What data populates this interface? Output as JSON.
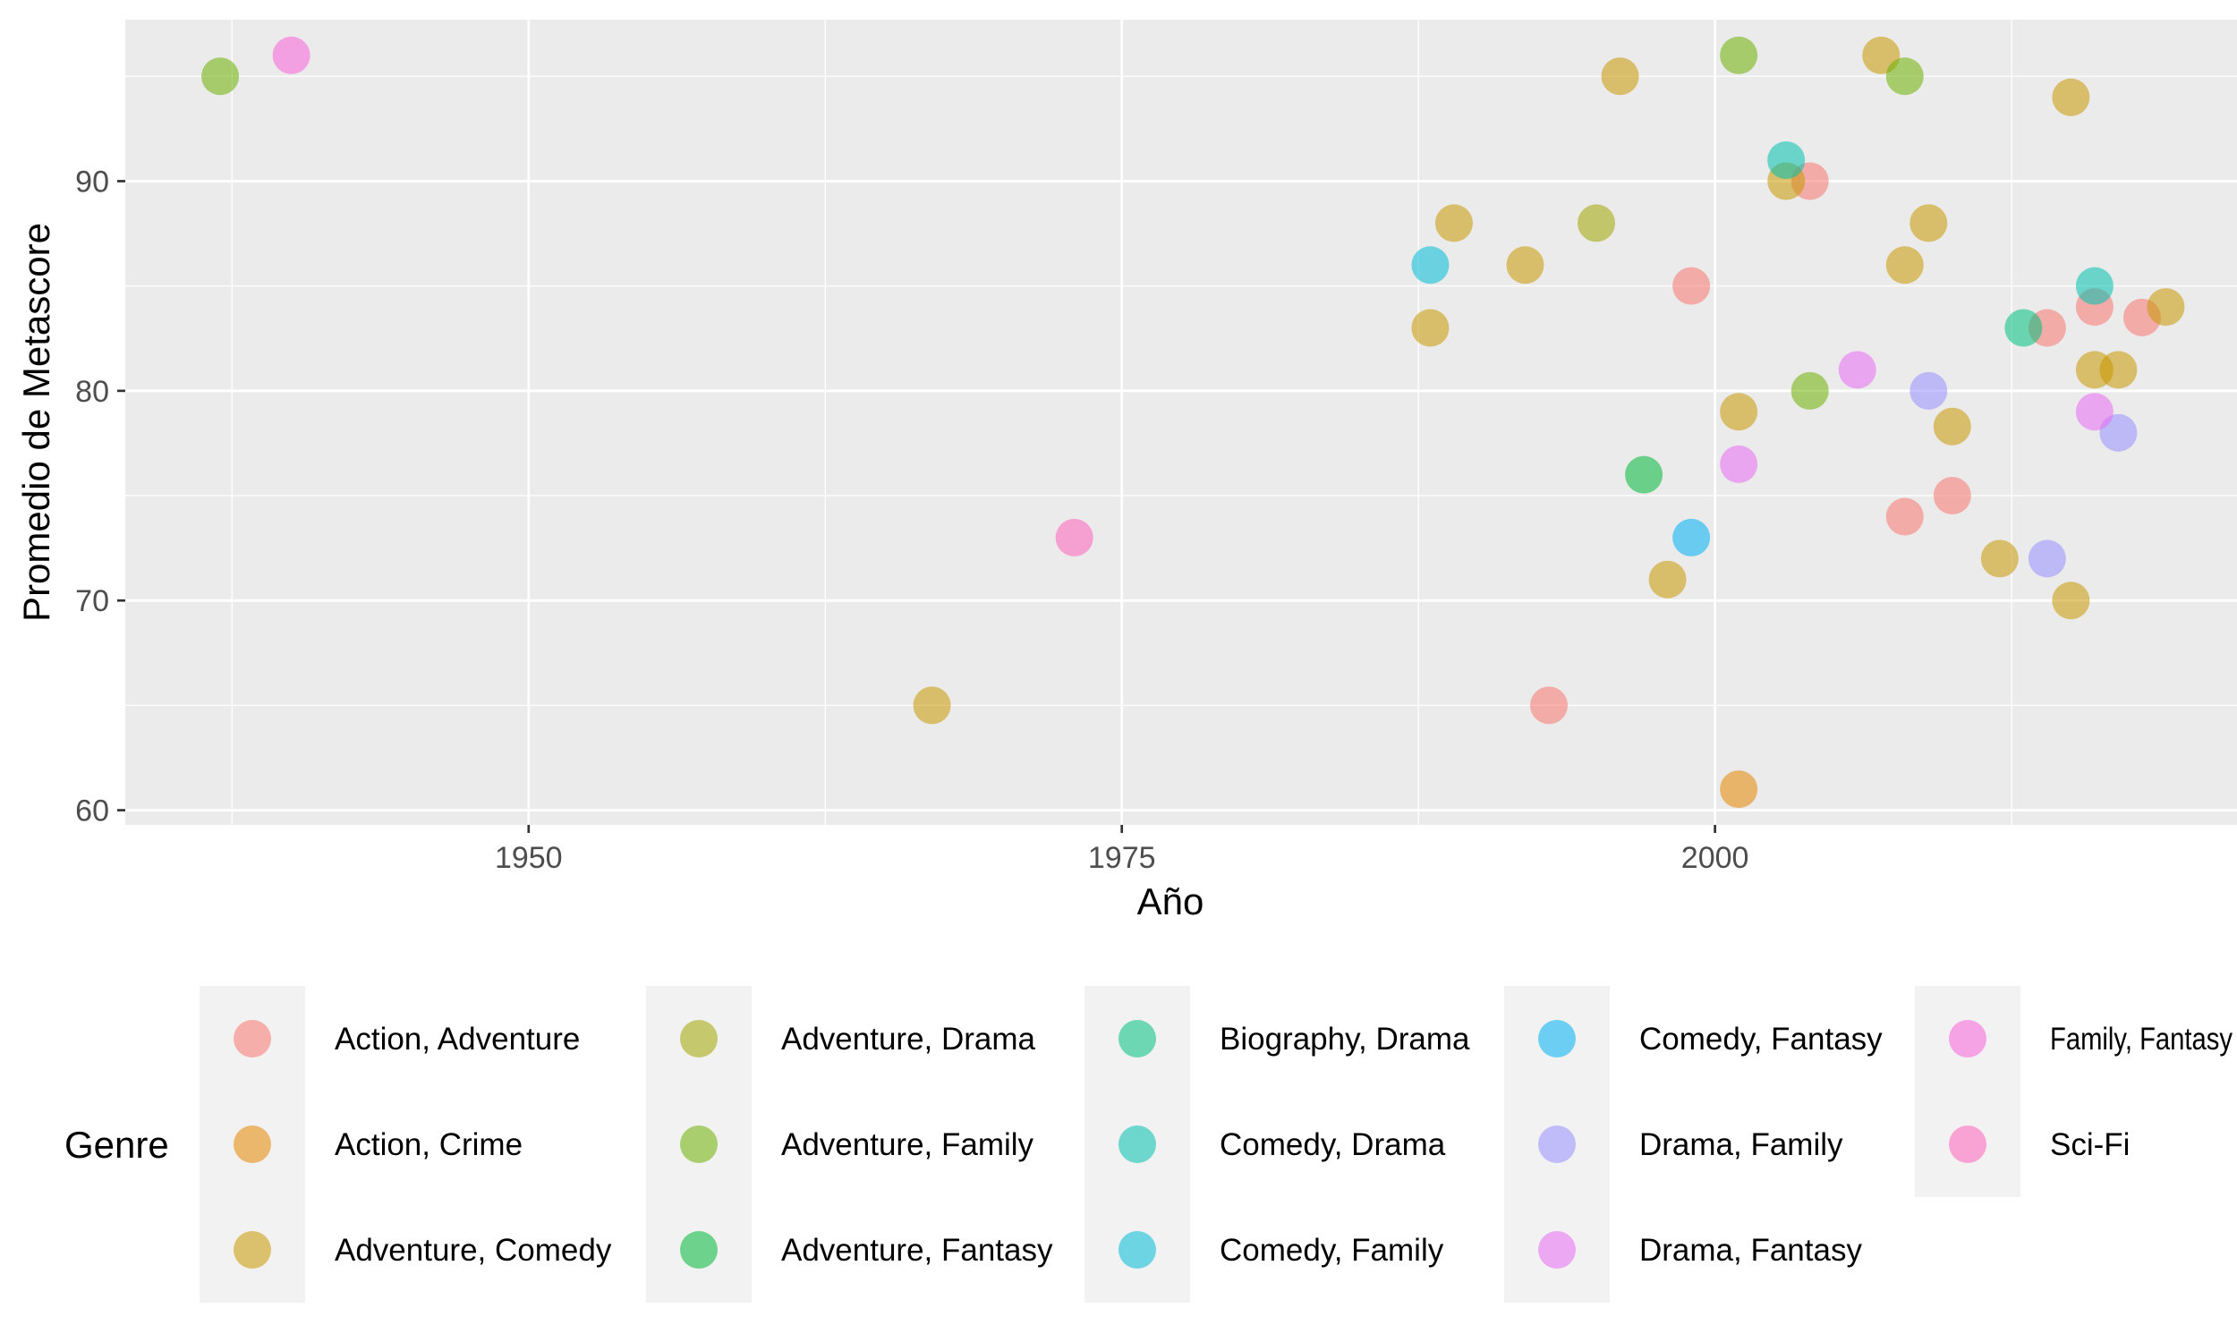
{
  "chart_data": {
    "type": "scatter",
    "title": "",
    "xlabel": "Año",
    "ylabel": "Promedio de Metascore",
    "xlim": [
      1933,
      2022
    ],
    "ylim": [
      59.3,
      97.7
    ],
    "x_ticks": [
      1950,
      1975,
      2000
    ],
    "y_ticks": [
      60,
      70,
      80,
      90
    ],
    "grid": true,
    "legend": {
      "title": "Genre",
      "position": "bottom"
    },
    "series": [
      {
        "name": "Action, Adventure",
        "color": "#F8766D",
        "points": [
          [
            1993,
            65
          ],
          [
            1999,
            85
          ],
          [
            2004,
            90
          ],
          [
            2008,
            74
          ],
          [
            2010,
            75
          ],
          [
            2014,
            83
          ],
          [
            2016,
            84
          ],
          [
            2018,
            83.5
          ]
        ]
      },
      {
        "name": "Action, Crime",
        "color": "#E58700",
        "points": [
          [
            2001,
            61
          ]
        ]
      },
      {
        "name": "Adventure, Comedy",
        "color": "#C99800",
        "points": [
          [
            1967,
            65
          ],
          [
            1988,
            83
          ],
          [
            1989,
            88
          ],
          [
            1992,
            86
          ],
          [
            1996,
            95
          ],
          [
            1998,
            71
          ],
          [
            2001,
            79
          ],
          [
            2003,
            90
          ],
          [
            2007,
            96
          ],
          [
            2008,
            86
          ],
          [
            2009,
            88
          ],
          [
            2010,
            78.3
          ],
          [
            2012,
            72
          ],
          [
            2015,
            94
          ],
          [
            2015,
            70
          ],
          [
            2016,
            81
          ],
          [
            2017,
            81
          ],
          [
            2019,
            84
          ]
        ]
      },
      {
        "name": "Adventure, Drama",
        "color": "#A3A500",
        "points": [
          [
            1995,
            88
          ]
        ]
      },
      {
        "name": "Adventure, Family",
        "color": "#6BB100",
        "points": [
          [
            1937,
            95
          ],
          [
            2001,
            96
          ],
          [
            2004,
            80
          ],
          [
            2008,
            95
          ]
        ]
      },
      {
        "name": "Adventure, Fantasy",
        "color": "#00BA38",
        "points": [
          [
            1997,
            76
          ]
        ]
      },
      {
        "name": "Biography, Drama",
        "color": "#00BF7D",
        "points": [
          [
            2013,
            83
          ]
        ]
      },
      {
        "name": "Comedy, Drama",
        "color": "#00C0AF",
        "points": [
          [
            2003,
            91
          ],
          [
            2016,
            85
          ]
        ]
      },
      {
        "name": "Comedy, Family",
        "color": "#00BCD8",
        "points": [
          [
            1988,
            86
          ]
        ]
      },
      {
        "name": "Comedy, Fantasy",
        "color": "#00B0F6",
        "points": [
          [
            1999,
            73
          ]
        ]
      },
      {
        "name": "Drama, Family",
        "color": "#9590FF",
        "points": [
          [
            2009,
            80
          ],
          [
            2014,
            72
          ],
          [
            2017,
            78
          ]
        ]
      },
      {
        "name": "Drama, Fantasy",
        "color": "#E76BF3",
        "points": [
          [
            2001,
            76.5
          ],
          [
            2006,
            81
          ],
          [
            2016,
            79
          ]
        ]
      },
      {
        "name": "Family, Fantasy",
        "color": "#FA62DB",
        "points": [
          [
            1940,
            96
          ]
        ]
      },
      {
        "name": "Sci-Fi",
        "color": "#FF62BC",
        "points": [
          [
            1973,
            73
          ]
        ]
      }
    ]
  }
}
